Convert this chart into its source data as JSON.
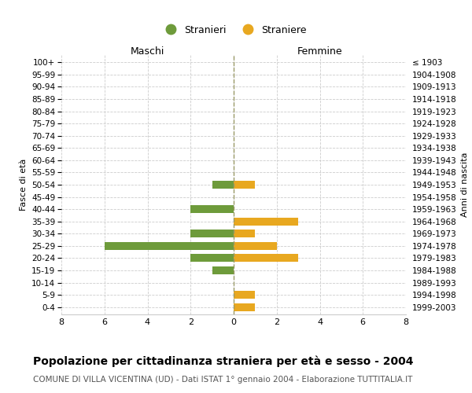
{
  "age_groups_bottom_to_top": [
    "0-4",
    "5-9",
    "10-14",
    "15-19",
    "20-24",
    "25-29",
    "30-34",
    "35-39",
    "40-44",
    "45-49",
    "50-54",
    "55-59",
    "60-64",
    "65-69",
    "70-74",
    "75-79",
    "80-84",
    "85-89",
    "90-94",
    "95-99",
    "100+"
  ],
  "birth_years_bottom_to_top": [
    "1999-2003",
    "1994-1998",
    "1989-1993",
    "1984-1988",
    "1979-1983",
    "1974-1978",
    "1969-1973",
    "1964-1968",
    "1959-1963",
    "1954-1958",
    "1949-1953",
    "1944-1948",
    "1939-1943",
    "1934-1938",
    "1929-1933",
    "1924-1928",
    "1919-1923",
    "1914-1918",
    "1909-1913",
    "1904-1908",
    "≤ 1903"
  ],
  "males_bottom_to_top": [
    0,
    0,
    0,
    1,
    2,
    6,
    2,
    0,
    2,
    0,
    1,
    0,
    0,
    0,
    0,
    0,
    0,
    0,
    0,
    0,
    0
  ],
  "females_bottom_to_top": [
    1,
    1,
    0,
    0,
    3,
    2,
    1,
    3,
    0,
    0,
    1,
    0,
    0,
    0,
    0,
    0,
    0,
    0,
    0,
    0,
    0
  ],
  "male_color": "#6E9B3B",
  "female_color": "#E8A820",
  "background_color": "#ffffff",
  "grid_color": "#cccccc",
  "title": "Popolazione per cittadinanza straniera per età e sesso - 2004",
  "subtitle": "COMUNE DI VILLA VICENTINA (UD) - Dati ISTAT 1° gennaio 2004 - Elaborazione TUTTITALIA.IT",
  "left_label": "Maschi",
  "right_label": "Femmine",
  "ylabel_left": "Fasce di età",
  "ylabel_right": "Anni di nascita",
  "legend_male": "Stranieri",
  "legend_female": "Straniere",
  "xlim": 8,
  "center_line_color": "#999966",
  "title_fontsize": 10,
  "subtitle_fontsize": 7.5
}
